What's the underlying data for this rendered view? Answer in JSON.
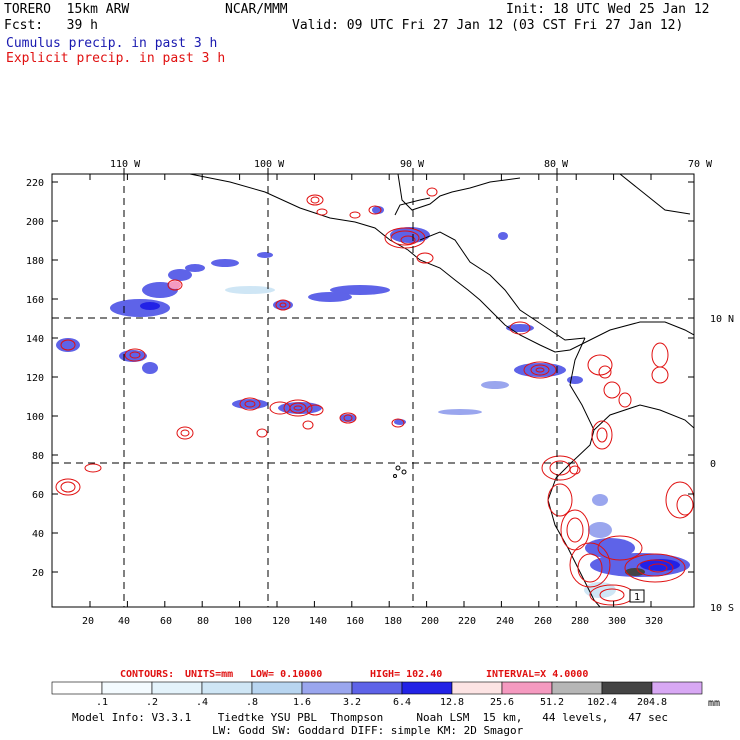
{
  "header": {
    "model": "TORERO  15km ARW",
    "org": "NCAR/MMM",
    "init": "Init: 18 UTC Wed 25 Jan 12",
    "fcst": "Fcst:   39 h",
    "valid": "Valid: 09 UTC Fri 27 Jan 12 (03 CST Fri 27 Jan 12)",
    "field1": "Cumulus precip. in past 3 h",
    "field2": "Explicit precip. in past 3 h"
  },
  "colors": {
    "cumulus_label": "#1a1ab0",
    "explicit_label": "#e01010",
    "explicit_contour": "#e01010",
    "coastline": "#000000"
  },
  "map": {
    "lon_labels": [
      "110 W",
      "100 W",
      "90 W",
      "80 W",
      "70 W"
    ],
    "lat_labels": [
      "10 N",
      "0",
      "10 S"
    ],
    "y_ticks": [
      "220",
      "200",
      "180",
      "160",
      "140",
      "120",
      "100",
      "80",
      "60",
      "40",
      "20"
    ],
    "x_ticks": [
      "20",
      "40",
      "60",
      "80",
      "100",
      "120",
      "140",
      "160",
      "180",
      "200",
      "220",
      "240",
      "260",
      "280",
      "300",
      "320"
    ],
    "corner_box": "1"
  },
  "contours": {
    "title": "CONTOURS:",
    "units": "UNITS=mm",
    "low": "LOW= 0.10000",
    "high": "HIGH=  102.40",
    "interval": "INTERVAL=X  4.0000"
  },
  "legend": {
    "unit": "mm",
    "labels": [
      ".1",
      ".2",
      ".4",
      ".8",
      "1.6",
      "3.2",
      "6.4",
      "12.8",
      "25.6",
      "51.2",
      "102.4",
      "204.8"
    ],
    "colors": [
      "#ffffff",
      "#f4fbff",
      "#e4f3fb",
      "#cfe6f5",
      "#b8d5f0",
      "#9aa6ee",
      "#5e63e8",
      "#2222e6",
      "#fde4e4",
      "#f59ac0",
      "#b6b6b6",
      "#444444",
      "#d8a8f4"
    ]
  },
  "footer": {
    "line1": "Model Info: V3.3.1    Tiedtke YSU PBL  Thompson     Noah LSM  15 km,   44 levels,   47 sec",
    "line2": "LW: Godd SW: Goddard DIFF: simple KM: 2D Smagor"
  }
}
